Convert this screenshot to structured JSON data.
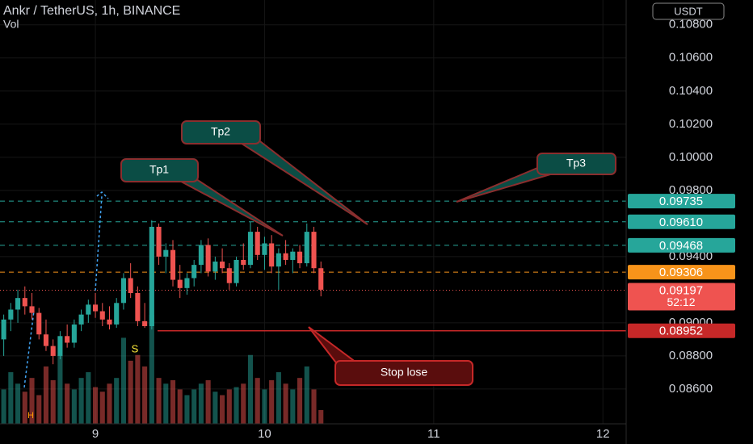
{
  "chart_data": {
    "type": "candlestick",
    "title": "Ankr / TetherUS, 1h, BINANCE",
    "volume_label": "Vol",
    "currency": "USDT",
    "x": [
      11,
      12,
      13,
      14,
      15,
      16,
      17,
      18,
      19,
      20,
      21,
      22,
      23,
      24,
      25,
      26,
      27,
      28,
      29,
      30,
      31,
      32,
      33,
      34,
      35,
      36,
      37,
      38,
      39,
      40,
      41,
      42,
      43,
      44,
      45,
      46,
      47,
      48,
      49,
      50,
      51,
      52,
      53,
      54,
      55,
      56
    ],
    "open": [
      0.089,
      0.0902,
      0.0908,
      0.0915,
      0.091,
      0.0906,
      0.0893,
      0.0886,
      0.088,
      0.0892,
      0.0888,
      0.0899,
      0.0905,
      0.0911,
      0.0907,
      0.0902,
      0.0899,
      0.0912,
      0.0927,
      0.0918,
      0.0901,
      0.0898,
      0.0958,
      0.094,
      0.0944,
      0.0926,
      0.0921,
      0.0927,
      0.0935,
      0.0947,
      0.0931,
      0.0937,
      0.0933,
      0.0924,
      0.0938,
      0.0935,
      0.0955,
      0.0941,
      0.0948,
      0.0934,
      0.0942,
      0.0938,
      0.0943,
      0.0936,
      0.0955,
      0.0933
    ],
    "high": [
      0.0905,
      0.0912,
      0.092,
      0.0922,
      0.0918,
      0.0909,
      0.0902,
      0.089,
      0.0895,
      0.0899,
      0.0902,
      0.0908,
      0.0914,
      0.0918,
      0.0912,
      0.091,
      0.0915,
      0.093,
      0.0936,
      0.0922,
      0.0912,
      0.0962,
      0.096,
      0.0948,
      0.095,
      0.0935,
      0.093,
      0.0938,
      0.095,
      0.0951,
      0.094,
      0.0945,
      0.0936,
      0.094,
      0.0948,
      0.0961,
      0.0958,
      0.0952,
      0.0953,
      0.0945,
      0.095,
      0.0945,
      0.0947,
      0.096,
      0.0958,
      0.0937
    ],
    "low": [
      0.088,
      0.0895,
      0.09,
      0.0905,
      0.0902,
      0.089,
      0.0883,
      0.0875,
      0.0878,
      0.0885,
      0.0885,
      0.0895,
      0.09,
      0.0903,
      0.0898,
      0.0896,
      0.0897,
      0.0908,
      0.0915,
      0.0898,
      0.0897,
      0.0896,
      0.0935,
      0.093,
      0.0922,
      0.0915,
      0.0917,
      0.0922,
      0.093,
      0.0928,
      0.0926,
      0.093,
      0.092,
      0.0922,
      0.0932,
      0.0933,
      0.0938,
      0.0932,
      0.093,
      0.092,
      0.0935,
      0.093,
      0.0933,
      0.0934,
      0.093,
      0.0916
    ],
    "close": [
      0.0902,
      0.0908,
      0.0915,
      0.091,
      0.0906,
      0.0893,
      0.0886,
      0.088,
      0.0892,
      0.0888,
      0.0899,
      0.0905,
      0.0911,
      0.0907,
      0.0902,
      0.0899,
      0.0912,
      0.0927,
      0.0918,
      0.0901,
      0.0898,
      0.0958,
      0.094,
      0.0944,
      0.0926,
      0.0921,
      0.0927,
      0.0935,
      0.0947,
      0.0931,
      0.0937,
      0.0933,
      0.0924,
      0.0938,
      0.0935,
      0.0955,
      0.0941,
      0.0948,
      0.0934,
      0.0942,
      0.0938,
      0.0943,
      0.0936,
      0.0955,
      0.0933,
      0.092
    ],
    "volume": [
      30,
      45,
      35,
      28,
      40,
      25,
      50,
      38,
      60,
      35,
      30,
      40,
      45,
      32,
      28,
      35,
      40,
      75,
      55,
      60,
      50,
      95,
      40,
      35,
      38,
      30,
      25,
      30,
      35,
      38,
      28,
      25,
      30,
      32,
      35,
      60,
      40,
      30,
      38,
      45,
      35,
      30,
      40,
      50,
      30,
      12
    ],
    "up_color": "#26a69a",
    "down_color": "#ef5350",
    "xlim": [
      10.47,
      99.3
    ],
    "xticks": [
      {
        "value": 24,
        "label": "9"
      },
      {
        "value": 48,
        "label": "10"
      },
      {
        "value": 72,
        "label": "11"
      },
      {
        "value": 96,
        "label": "12"
      }
    ],
    "ylim": [
      0.0839,
      0.1095
    ],
    "yticks": [
      {
        "value": 0.108,
        "label": "0.10800"
      },
      {
        "value": 0.106,
        "label": "0.10600"
      },
      {
        "value": 0.104,
        "label": "0.10400"
      },
      {
        "value": 0.102,
        "label": "0.10200"
      },
      {
        "value": 0.1,
        "label": "0.10000"
      },
      {
        "value": 0.098,
        "label": "0.09800"
      },
      {
        "value": 0.094,
        "label": "0.09400"
      },
      {
        "value": 0.09,
        "label": "0.09000"
      },
      {
        "value": 0.088,
        "label": "0.08800"
      },
      {
        "value": 0.086,
        "label": "0.08600"
      }
    ],
    "grid": true,
    "levels": [
      {
        "value": 0.09735,
        "label": "0.09735",
        "color": "#26a69a",
        "style": "dashed"
      },
      {
        "value": 0.0961,
        "label": "0.09610",
        "color": "#26a69a",
        "style": "dashed"
      },
      {
        "value": 0.09468,
        "label": "0.09468",
        "color": "#26a69a",
        "style": "dashed"
      },
      {
        "value": 0.09306,
        "label": "0.09306",
        "color": "#f7931a",
        "style": "dashed"
      },
      {
        "value": 0.09197,
        "label": "0.09197",
        "color": "#ef5350",
        "style": "dotted",
        "countdown": "52:12"
      },
      {
        "value": 0.08952,
        "label": "0.08952",
        "color": "#c62828",
        "style": "solid"
      }
    ],
    "annotations": {
      "tp1": "Tp1",
      "tp2": "Tp2",
      "tp3": "Tp3",
      "stop": "Stop lose",
      "s": "S",
      "h": "H"
    }
  }
}
